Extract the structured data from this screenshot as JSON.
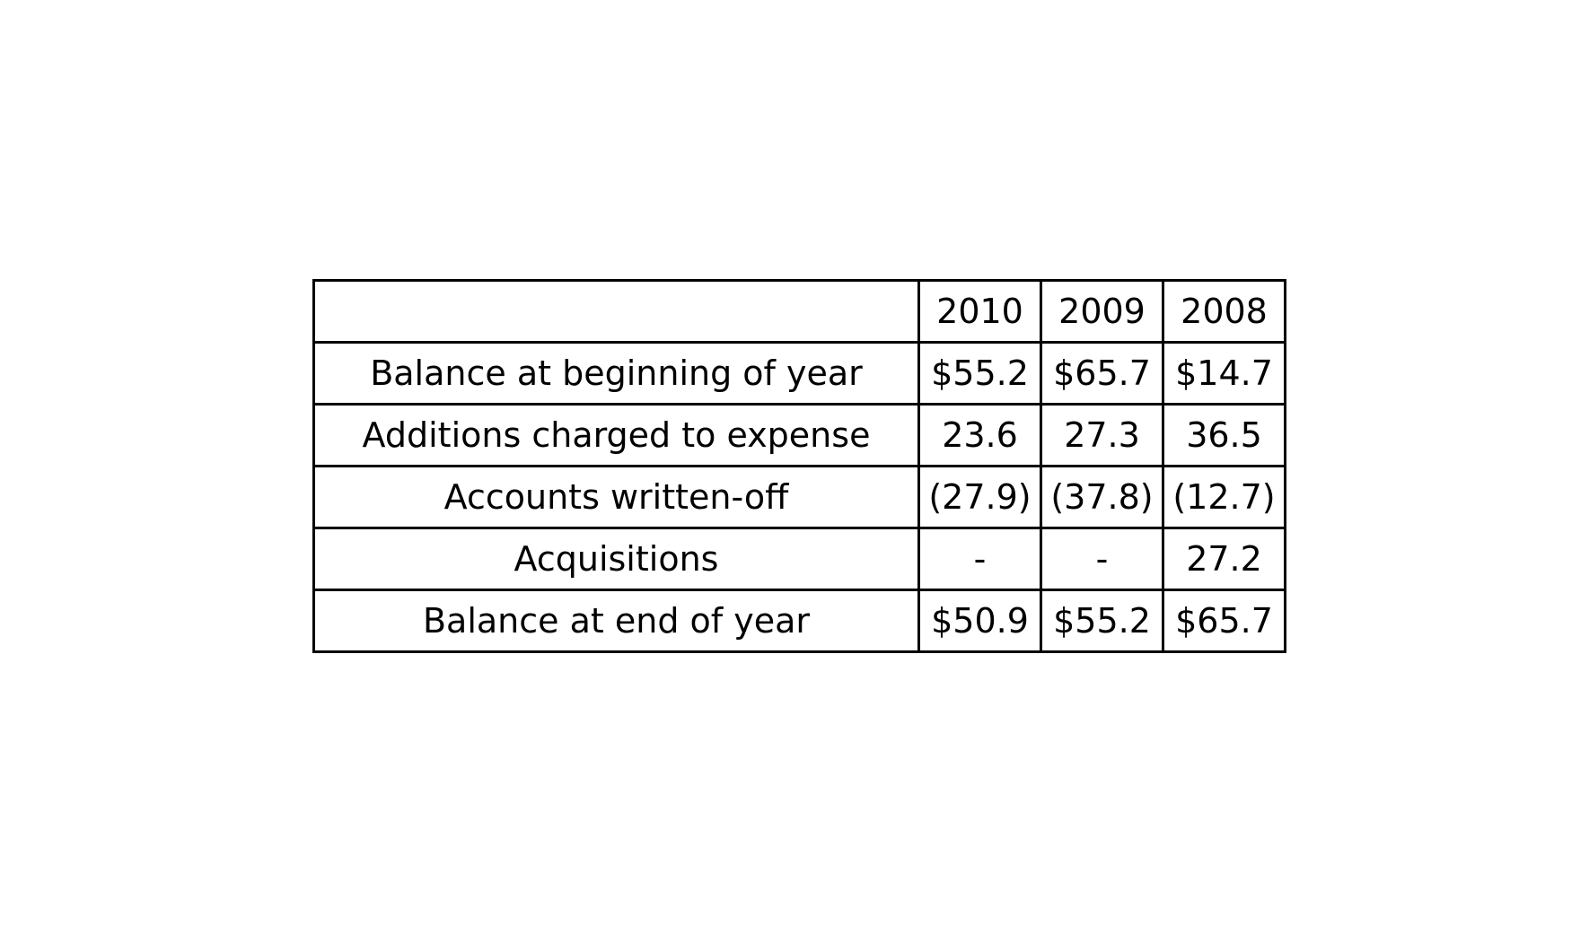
{
  "chart_data": {
    "type": "table",
    "columns": [
      "",
      "2010",
      "2009",
      "2008"
    ],
    "rows": [
      [
        "Balance at beginning of year",
        "$55.2",
        "$65.7",
        "$14.7"
      ],
      [
        "Additions charged to expense",
        "23.6",
        "27.3",
        "36.5"
      ],
      [
        "Accounts written-off",
        "(27.9)",
        "(37.8)",
        "(12.7)"
      ],
      [
        "Acquisitions",
        "-",
        "-",
        "27.2"
      ],
      [
        "Balance at end of year",
        "$50.9",
        "$55.2",
        "$65.7"
      ]
    ]
  }
}
